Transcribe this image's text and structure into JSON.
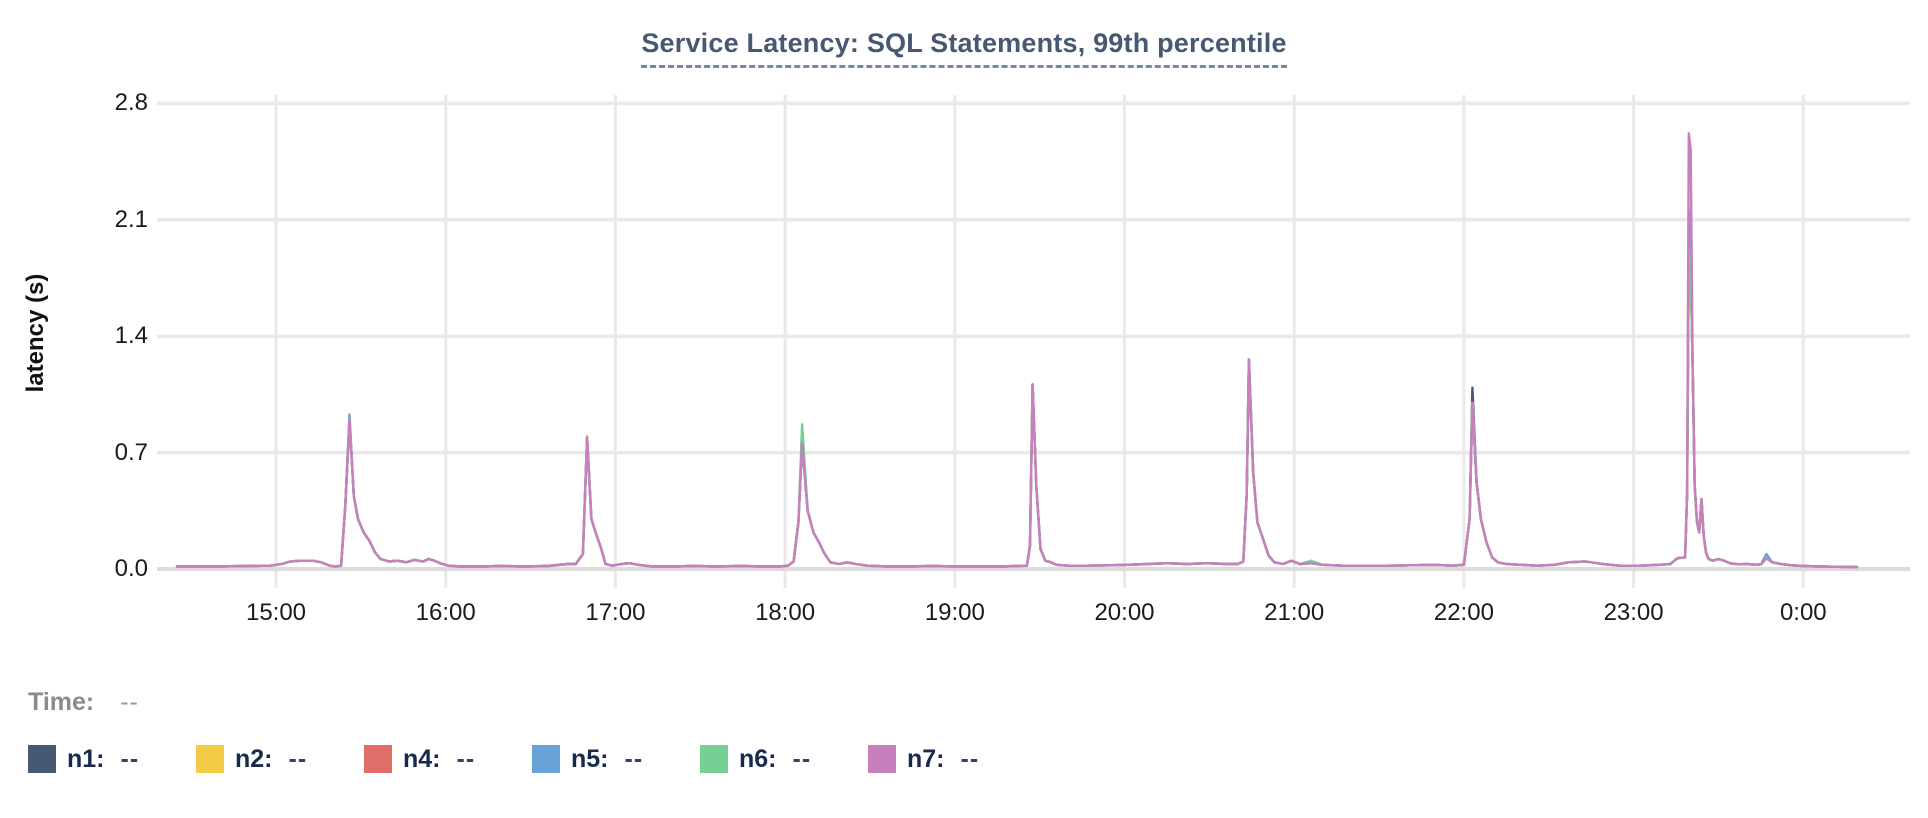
{
  "chart_data": {
    "type": "line",
    "title": "Service Latency: SQL Statements, 99th percentile",
    "ylabel": "latency (s)",
    "xlabel": "",
    "grid": true,
    "legend_position": "bottom",
    "ylim": [
      0,
      2.85
    ],
    "yticks": [
      {
        "label": "0.0",
        "value": 0.0
      },
      {
        "label": "0.7",
        "value": 0.7
      },
      {
        "label": "1.4",
        "value": 1.4
      },
      {
        "label": "2.1",
        "value": 2.1
      },
      {
        "label": "2.8",
        "value": 2.8
      }
    ],
    "xlim_minutes": [
      865,
      1459
    ],
    "xticks": [
      {
        "label": "15:00",
        "minute": 900
      },
      {
        "label": "16:00",
        "minute": 960
      },
      {
        "label": "17:00",
        "minute": 1020
      },
      {
        "label": "18:00",
        "minute": 1080
      },
      {
        "label": "19:00",
        "minute": 1140
      },
      {
        "label": "20:00",
        "minute": 1200
      },
      {
        "label": "21:00",
        "minute": 1260
      },
      {
        "label": "22:00",
        "minute": 1320
      },
      {
        "label": "23:00",
        "minute": 1380
      },
      {
        "label": "0:00",
        "minute": 1440
      }
    ],
    "base_points": [
      [
        865,
        0.015
      ],
      [
        878,
        0.015
      ],
      [
        890,
        0.018
      ],
      [
        898,
        0.02
      ],
      [
        902,
        0.03
      ],
      [
        905,
        0.045
      ],
      [
        909,
        0.05
      ],
      [
        913,
        0.05
      ],
      [
        916,
        0.04
      ],
      [
        919,
        0.02
      ],
      [
        921,
        0.015
      ],
      [
        923,
        0.02
      ],
      [
        924.5,
        0.38
      ],
      [
        926,
        0.9
      ],
      [
        927.5,
        0.44
      ],
      [
        929,
        0.3
      ],
      [
        931,
        0.22
      ],
      [
        933,
        0.17
      ],
      [
        935,
        0.1
      ],
      [
        937,
        0.06
      ],
      [
        940,
        0.045
      ],
      [
        943,
        0.05
      ],
      [
        946,
        0.04
      ],
      [
        949,
        0.055
      ],
      [
        952,
        0.045
      ],
      [
        954,
        0.06
      ],
      [
        956,
        0.05
      ],
      [
        958,
        0.035
      ],
      [
        961,
        0.02
      ],
      [
        965,
        0.015
      ],
      [
        972,
        0.015
      ],
      [
        980,
        0.018
      ],
      [
        988,
        0.015
      ],
      [
        996,
        0.018
      ],
      [
        1003,
        0.03
      ],
      [
        1006,
        0.03
      ],
      [
        1008.5,
        0.09
      ],
      [
        1010,
        0.79
      ],
      [
        1011.5,
        0.3
      ],
      [
        1013,
        0.22
      ],
      [
        1015,
        0.12
      ],
      [
        1016.5,
        0.03
      ],
      [
        1019,
        0.02
      ],
      [
        1022,
        0.03
      ],
      [
        1025,
        0.035
      ],
      [
        1028,
        0.025
      ],
      [
        1033,
        0.015
      ],
      [
        1040,
        0.015
      ],
      [
        1048,
        0.018
      ],
      [
        1056,
        0.015
      ],
      [
        1064,
        0.018
      ],
      [
        1072,
        0.015
      ],
      [
        1078,
        0.015
      ],
      [
        1081,
        0.02
      ],
      [
        1083,
        0.045
      ],
      [
        1084.7,
        0.28
      ],
      [
        1086,
        0.76
      ],
      [
        1088,
        0.35
      ],
      [
        1090,
        0.22
      ],
      [
        1092,
        0.16
      ],
      [
        1094,
        0.09
      ],
      [
        1096,
        0.04
      ],
      [
        1099,
        0.03
      ],
      [
        1102,
        0.04
      ],
      [
        1105,
        0.03
      ],
      [
        1109,
        0.02
      ],
      [
        1116,
        0.015
      ],
      [
        1124,
        0.015
      ],
      [
        1132,
        0.018
      ],
      [
        1140,
        0.015
      ],
      [
        1148,
        0.015
      ],
      [
        1156,
        0.015
      ],
      [
        1162,
        0.018
      ],
      [
        1165.5,
        0.02
      ],
      [
        1166.6,
        0.14
      ],
      [
        1167.5,
        1.11
      ],
      [
        1168.8,
        0.5
      ],
      [
        1170.3,
        0.12
      ],
      [
        1172,
        0.05
      ],
      [
        1174,
        0.04
      ],
      [
        1176,
        0.025
      ],
      [
        1180,
        0.02
      ],
      [
        1187,
        0.02
      ],
      [
        1194,
        0.022
      ],
      [
        1201,
        0.025
      ],
      [
        1208,
        0.03
      ],
      [
        1215,
        0.035
      ],
      [
        1222,
        0.03
      ],
      [
        1229,
        0.035
      ],
      [
        1236,
        0.03
      ],
      [
        1240,
        0.03
      ],
      [
        1242,
        0.045
      ],
      [
        1243.2,
        0.45
      ],
      [
        1244,
        1.26
      ],
      [
        1245.5,
        0.58
      ],
      [
        1247,
        0.28
      ],
      [
        1249,
        0.18
      ],
      [
        1251,
        0.08
      ],
      [
        1253,
        0.04
      ],
      [
        1256,
        0.03
      ],
      [
        1259,
        0.05
      ],
      [
        1262,
        0.03
      ],
      [
        1266,
        0.035
      ],
      [
        1270,
        0.025
      ],
      [
        1277,
        0.02
      ],
      [
        1285,
        0.02
      ],
      [
        1293,
        0.02
      ],
      [
        1301,
        0.022
      ],
      [
        1309,
        0.025
      ],
      [
        1316,
        0.02
      ],
      [
        1320,
        0.025
      ],
      [
        1322,
        0.3
      ],
      [
        1323,
        1.0
      ],
      [
        1324.5,
        0.52
      ],
      [
        1326,
        0.3
      ],
      [
        1328,
        0.16
      ],
      [
        1330,
        0.07
      ],
      [
        1332,
        0.04
      ],
      [
        1335,
        0.03
      ],
      [
        1340,
        0.025
      ],
      [
        1346,
        0.02
      ],
      [
        1352,
        0.025
      ],
      [
        1357,
        0.04
      ],
      [
        1363,
        0.045
      ],
      [
        1369,
        0.03
      ],
      [
        1375,
        0.02
      ],
      [
        1382,
        0.02
      ],
      [
        1389,
        0.025
      ],
      [
        1393,
        0.03
      ],
      [
        1395.5,
        0.065
      ],
      [
        1398.2,
        0.07
      ],
      [
        1398.9,
        0.45
      ],
      [
        1399.5,
        1.92
      ],
      [
        1400.2,
        1.8
      ],
      [
        1400.9,
        1.2
      ],
      [
        1401.6,
        0.5
      ],
      [
        1402.4,
        0.28
      ],
      [
        1403.2,
        0.22
      ],
      [
        1404,
        0.42
      ],
      [
        1404.8,
        0.2
      ],
      [
        1405.6,
        0.1
      ],
      [
        1406.5,
        0.06
      ],
      [
        1408,
        0.05
      ],
      [
        1410,
        0.06
      ],
      [
        1412,
        0.05
      ],
      [
        1414,
        0.035
      ],
      [
        1417,
        0.028
      ],
      [
        1420,
        0.03
      ],
      [
        1423,
        0.026
      ],
      [
        1425,
        0.028
      ],
      [
        1427,
        0.065
      ],
      [
        1429,
        0.04
      ],
      [
        1432,
        0.03
      ],
      [
        1436,
        0.022
      ],
      [
        1440,
        0.018
      ],
      [
        1446,
        0.015
      ],
      [
        1452,
        0.013
      ],
      [
        1459,
        0.012
      ]
    ],
    "series": [
      {
        "name": "n1",
        "color": "#475872",
        "overrides": [
          [
            1323,
            1.09
          ]
        ]
      },
      {
        "name": "n2",
        "color": "#F4CB44",
        "overrides": [
          [
            1010,
            0.8
          ]
        ]
      },
      {
        "name": "n4",
        "color": "#DF6E68",
        "overrides": []
      },
      {
        "name": "n5",
        "color": "#67A3D7",
        "overrides": [
          [
            926,
            0.93
          ],
          [
            1399.5,
            2.16
          ],
          [
            1400.2,
            2.0
          ],
          [
            1427,
            0.09
          ]
        ]
      },
      {
        "name": "n6",
        "color": "#75D093",
        "overrides": [
          [
            1086,
            0.87
          ],
          [
            1266,
            0.05
          ]
        ]
      },
      {
        "name": "n7",
        "color": "#C87FBE",
        "overrides": [
          [
            1399.5,
            2.62
          ],
          [
            1400.2,
            2.52
          ]
        ]
      }
    ]
  },
  "legend": {
    "time_label": "Time:",
    "time_value": "--",
    "entries": [
      {
        "label": "n1:",
        "value": "--"
      },
      {
        "label": "n2:",
        "value": "--"
      },
      {
        "label": "n4:",
        "value": "--"
      },
      {
        "label": "n5:",
        "value": "--"
      },
      {
        "label": "n6:",
        "value": "--"
      },
      {
        "label": "n7:",
        "value": "--"
      }
    ]
  },
  "colors": {
    "title": "#475872",
    "title_underline": "#7487AD",
    "grid": "#E9E9E9",
    "zero_line": "#DCDCDC",
    "tick_text": "#1A1A1A"
  }
}
